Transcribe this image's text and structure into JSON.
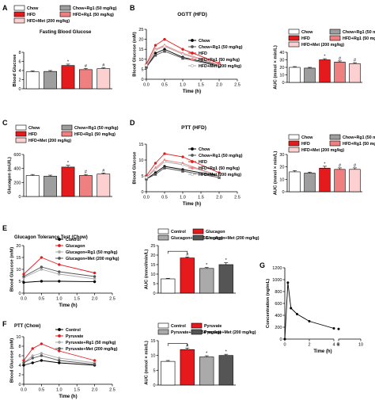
{
  "colors": {
    "chow": "#ffffff",
    "chow_rg1": "#9e9e9e",
    "hfd": "#e41a1c",
    "hfd_rg1": "#f08080",
    "hfd_met": "#fcd0d0",
    "line_black": "#000000",
    "line_dark": "#555555",
    "line_grey": "#aaaaaa",
    "line_red": "#e41a1c"
  },
  "chart_data": [
    {
      "panel": "A",
      "type": "bar",
      "title": "Fasting Blood Glucose",
      "ylabel": "Blood Glucose",
      "ylim": [
        0,
        8
      ],
      "yticks": [
        0,
        2,
        4,
        6,
        8
      ],
      "categories": [
        "Chow",
        "Chow+Rg1 (50 mg/kg)",
        "HFD",
        "HFD+Rg1 (50 mg/kg)",
        "HFD+Met (200 mg/kg)"
      ],
      "values": [
        3.7,
        3.8,
        5.1,
        4.2,
        4.4
      ],
      "errors": [
        0.2,
        0.2,
        0.3,
        0.25,
        0.2
      ],
      "markers": [
        "",
        "",
        "*",
        "#",
        "#"
      ],
      "legend": [
        "Chow",
        "Chow+Rg1 (50 mg/kg)",
        "HFD",
        "HFD+Rg1 (50 mg/kg)",
        "HFD+Met (200 mg/kg)"
      ]
    },
    {
      "panel": "B",
      "type": "line",
      "title": "OGTT (HFD)",
      "xlabel": "Time (h)",
      "ylabel": "Blood Glucose (mM)",
      "xlim": [
        0,
        2.5
      ],
      "xticks": [
        "0.0",
        "0.5",
        "1.0",
        "1.5",
        "2.0",
        "2.5"
      ],
      "ylim": [
        0,
        25
      ],
      "yticks": [
        0,
        5,
        10,
        15,
        20,
        25
      ],
      "x": [
        0,
        0.25,
        0.5,
        1,
        2
      ],
      "series": [
        {
          "name": "Chow",
          "values": [
            6,
            13,
            15,
            11,
            7
          ]
        },
        {
          "name": "Chow+Rg1 (50 mg/kg)",
          "values": [
            6,
            12,
            14,
            10.5,
            6.5
          ]
        },
        {
          "name": "HFD",
          "values": [
            7.5,
            17,
            20,
            15,
            8
          ]
        },
        {
          "name": "HFD+Rg1 (50 mg/kg)",
          "values": [
            7,
            15,
            17,
            13,
            7.5
          ]
        },
        {
          "name": "HFD+Met (200 mg/kg)",
          "values": [
            7,
            14.5,
            16.5,
            12.5,
            7
          ]
        }
      ]
    },
    {
      "panel": "B2",
      "type": "bar",
      "ylabel": "AUC (mmol × min/L)",
      "ylim": [
        0,
        40
      ],
      "yticks": [
        0,
        10,
        20,
        30,
        40
      ],
      "categories": [
        "Chow",
        "Chow+Rg1 (50 mg/kg)",
        "HFD",
        "HFD+Rg1 (50 mg/kg)",
        "HFD+Met (200 mg/kg)"
      ],
      "values": [
        20,
        19,
        30,
        27,
        25
      ],
      "errors": [
        1,
        1,
        1.5,
        1.5,
        1.2
      ],
      "markers": [
        "",
        "",
        "*",
        "#",
        "#"
      ],
      "legend": [
        "Chow",
        "Chow+Rg1 (50 mg/kg)",
        "HFD",
        "HFD+Rg1 (50 mg/kg)",
        "HFD+Met (200 mg/kg)"
      ]
    },
    {
      "panel": "C",
      "type": "bar",
      "ylabel": "Glucagon (mU/L)",
      "ylim": [
        0,
        600
      ],
      "yticks": [
        0,
        200,
        400,
        600
      ],
      "categories": [
        "Chow",
        "Chow+Rg1 (50 mg/kg)",
        "HFD",
        "HFD+Rg1 (50 mg/kg)",
        "HFD+Met (200 mg/kg)"
      ],
      "values": [
        300,
        290,
        420,
        300,
        320
      ],
      "errors": [
        15,
        15,
        25,
        15,
        15
      ],
      "markers": [
        "",
        "",
        "*",
        "#",
        "#"
      ],
      "legend": [
        "Chow",
        "Chow+Rg1 (50 mg/kg)",
        "HFD",
        "HFD+Rg1 (50 mg/kg)",
        "HFD+Met (200 mg/kg)"
      ]
    },
    {
      "panel": "D",
      "type": "line",
      "title": "PTT (HFD)",
      "xlabel": "Time (h)",
      "ylabel": "Blood Glucose",
      "xlim": [
        0,
        2.5
      ],
      "xticks": [
        "0.0",
        "0.5",
        "1.0",
        "1.5",
        "2.0",
        "2.5"
      ],
      "ylim": [
        0,
        15
      ],
      "yticks": [
        0,
        5,
        10,
        15
      ],
      "x": [
        0,
        0.25,
        0.5,
        1,
        2
      ],
      "series": [
        {
          "name": "Chow",
          "values": [
            4,
            6,
            8,
            7,
            5
          ]
        },
        {
          "name": "Chow+Rg1 (50 mg/kg)",
          "values": [
            4,
            5.5,
            7.5,
            6.5,
            4.5
          ]
        },
        {
          "name": "HFD",
          "values": [
            5,
            9,
            12,
            11,
            6
          ]
        },
        {
          "name": "HFD+Rg1 (50 mg/kg)",
          "values": [
            4.5,
            7.5,
            10,
            9,
            5
          ]
        },
        {
          "name": "HFD+Met (200 mg/kg)",
          "values": [
            4.5,
            7,
            9.5,
            8.5,
            5
          ]
        }
      ]
    },
    {
      "panel": "D2",
      "type": "bar",
      "ylabel": "AUC (mmol × min/L)",
      "ylim": [
        0,
        30
      ],
      "yticks": [
        0,
        10,
        20,
        30
      ],
      "categories": [
        "Chow",
        "Chow+Rg1 (50 mg/kg)",
        "HFD",
        "HFD+Rg1 (50 mg/kg)",
        "HFD+Met (200 mg/kg)"
      ],
      "values": [
        16,
        15,
        19,
        18,
        18
      ],
      "errors": [
        1,
        0.8,
        1.5,
        1.2,
        1.2
      ],
      "markers": [
        "",
        "",
        "*",
        "#",
        "#"
      ],
      "legend": [
        "Chow",
        "Chow+Rg1 (50 mg/kg)",
        "HFD",
        "HFD+Rg1 (50 mg/kg)",
        "HFD+Met (200 mg/kg)"
      ]
    },
    {
      "panel": "E",
      "type": "line",
      "title": "Glucagon Tolerance Test (Chow)",
      "xlabel": "Time (h)",
      "ylabel": "Blood Glucose (mM)",
      "xlim": [
        0,
        2.5
      ],
      "xticks": [
        "0.0",
        "0.5",
        "1.0",
        "1.5",
        "2.0",
        "2.5"
      ],
      "ylim": [
        0,
        20
      ],
      "yticks": [
        0,
        5,
        10,
        15,
        20
      ],
      "x": [
        0,
        0.5,
        1,
        2
      ],
      "series": [
        {
          "name": "Control",
          "values": [
            4.5,
            5,
            5,
            4.8
          ]
        },
        {
          "name": "Glucagon",
          "values": [
            8,
            15,
            12,
            8.5
          ]
        },
        {
          "name": "Glucagon+Rg1 (50 mg/kg)",
          "values": [
            6.5,
            10,
            8,
            6
          ]
        },
        {
          "name": "Glucagon+Met (200 mg/kg)",
          "values": [
            7,
            11,
            9,
            7
          ]
        }
      ]
    },
    {
      "panel": "E2",
      "type": "bar",
      "ylabel": "AUC (mmol/min/L)",
      "ylim": [
        0,
        25
      ],
      "yticks": [
        0,
        5,
        10,
        15,
        20,
        25
      ],
      "categories": [
        "Control",
        "Glucagon",
        "Glucagon+Rg1 (50 mg/kg)",
        "Glucagon+Met (200 mg/kg)"
      ],
      "values": [
        7.5,
        18.5,
        13,
        15
      ],
      "errors": [
        0.3,
        0.5,
        0.5,
        1
      ],
      "markers": [
        "",
        "#",
        "*",
        "*"
      ],
      "legend": [
        "Control",
        "Glucagon",
        "Glucagon+Rg1 (50 mg/kg)",
        "Glucagon+Met (200 mg/kg)"
      ]
    },
    {
      "panel": "F",
      "type": "line",
      "title": "PTT (Chow)",
      "xlabel": "Time (h)",
      "ylabel": "Blood Glucose (mM)",
      "xlim": [
        0,
        2.5
      ],
      "xticks": [
        "0.0",
        "0.5",
        "1.0",
        "1.5",
        "2.0",
        "2.5"
      ],
      "ylim": [
        0,
        10
      ],
      "yticks": [
        0,
        2,
        4,
        6,
        8,
        10
      ],
      "x": [
        0,
        0.25,
        0.5,
        1,
        2
      ],
      "series": [
        {
          "name": "Control",
          "values": [
            4,
            4.5,
            5,
            4.5,
            4
          ]
        },
        {
          "name": "Pyruvate",
          "values": [
            5,
            7.5,
            8.5,
            7,
            5
          ]
        },
        {
          "name": "Pyruvate+Rg1 (50 mg/kg)",
          "values": [
            4.5,
            6,
            6.5,
            5.5,
            4.5
          ]
        },
        {
          "name": "Pyruvate+Met (200 mg/kg)",
          "values": [
            4.5,
            5.5,
            6,
            5,
            4.2
          ]
        }
      ]
    },
    {
      "panel": "F2",
      "type": "bar",
      "ylabel": "AUC (mmol × min/L)",
      "ylim": [
        0,
        15
      ],
      "yticks": [
        0,
        5,
        10,
        15
      ],
      "categories": [
        "Control",
        "Pyruvate",
        "Pyruvate+Rg1 (50 mg/kg)",
        "Pyruvate+Met (200 mg/kg)"
      ],
      "values": [
        8,
        12,
        9.5,
        10
      ],
      "errors": [
        0.3,
        0.5,
        0.4,
        0.4
      ],
      "markers": [
        "",
        "#",
        "*",
        "*"
      ],
      "legend": [
        "Control",
        "Pyruvate",
        "Pyruvate+Rg1 (50 mg/kg)",
        "Pyruvate+Met (200 mg/kg)"
      ]
    },
    {
      "panel": "G",
      "type": "line",
      "xlabel": "Time (h)",
      "ylabel": "Concentration (ng/mL)",
      "xticks": [
        "0",
        "2",
        "4",
        "6",
        "8",
        "10"
      ],
      "ylim": [
        0,
        1200
      ],
      "yticks": [
        0,
        200,
        400,
        600,
        800,
        1000,
        1200
      ],
      "x": [
        0,
        0.25,
        0.5,
        1,
        2,
        4,
        8
      ],
      "series": [
        {
          "name": "",
          "values": [
            0,
            950,
            520,
            420,
            300,
            180,
            170
          ]
        }
      ]
    }
  ],
  "panel_letters": [
    "A",
    "B",
    "C",
    "D",
    "E",
    "F",
    "G"
  ]
}
